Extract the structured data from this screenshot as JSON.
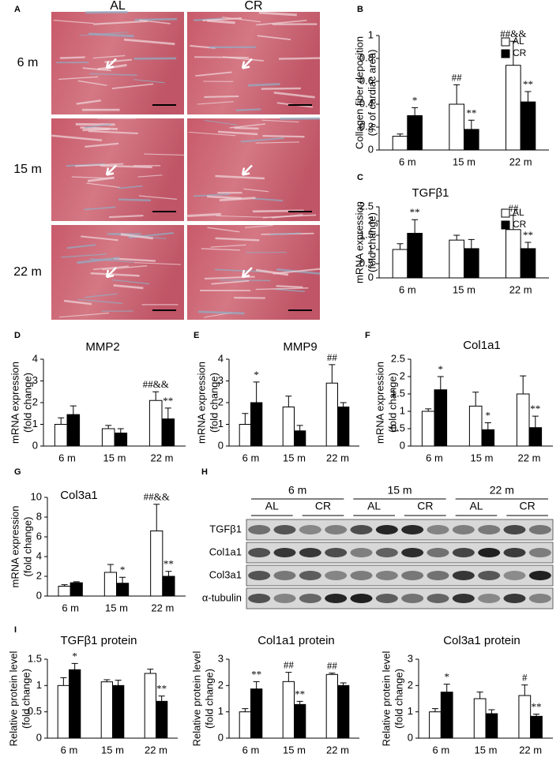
{
  "histology": {
    "panel": "A",
    "columns": [
      "AL",
      "CR"
    ],
    "rows": [
      "6 m",
      "15 m",
      "22 m"
    ]
  },
  "blot": {
    "panel": "H",
    "ages": [
      "6 m",
      "15 m",
      "22 m"
    ],
    "groups": [
      "AL",
      "CR"
    ],
    "proteins": [
      "TGFβ1",
      "Col1a1",
      "Col3a1",
      "α-tubulin"
    ]
  },
  "chart_data": [
    {
      "type": "bar",
      "panel": "B",
      "y_label": [
        "Collagen fiber deposition",
        "(% of cardiac area)"
      ],
      "categories": [
        "6 m",
        "15 m",
        "22 m"
      ],
      "series": [
        {
          "name": "AL",
          "color": "#ffffff",
          "values": [
            0.12,
            0.4,
            0.74
          ],
          "errors": [
            0.02,
            0.17,
            0.21
          ],
          "annotations": [
            null,
            "##",
            "##&&"
          ]
        },
        {
          "name": "CR",
          "color": "#000000",
          "values": [
            0.3,
            0.18,
            0.42
          ],
          "errors": [
            0.07,
            0.08,
            0.09
          ],
          "annotations": [
            "*",
            "**",
            "**"
          ]
        }
      ],
      "ylim": [
        0,
        1
      ],
      "yticks": [
        0,
        0.2,
        0.4,
        0.6,
        0.8,
        1
      ],
      "legend": "upper right"
    },
    {
      "type": "bar",
      "panel": "C",
      "title": "TGFβ1",
      "y_label": [
        "mRNA  expression",
        "(fold change)"
      ],
      "categories": [
        "6 m",
        "15 m",
        "22 m"
      ],
      "series": [
        {
          "name": "AL",
          "color": "#ffffff",
          "values": [
            1.0,
            1.33,
            1.7
          ],
          "errors": [
            0.2,
            0.17,
            0.5
          ],
          "annotations": [
            null,
            null,
            "##"
          ]
        },
        {
          "name": "CR",
          "color": "#000000",
          "values": [
            1.57,
            1.03,
            1.03
          ],
          "errors": [
            0.48,
            0.32,
            0.22
          ],
          "annotations": [
            "**",
            null,
            "**"
          ]
        }
      ],
      "ylim": [
        0,
        2.5
      ],
      "yticks": [
        0,
        0.5,
        1,
        1.5,
        2,
        2.5
      ],
      "legend": "upper right"
    },
    {
      "type": "bar",
      "panel": "D",
      "title": "MMP2",
      "y_label": [
        "mRNA  expression",
        "(fold change)"
      ],
      "categories": [
        "6 m",
        "15 m",
        "22 m"
      ],
      "series": [
        {
          "color": "#ffffff",
          "values": [
            1.0,
            0.8,
            2.1
          ],
          "errors": [
            0.3,
            0.15,
            0.4
          ],
          "annotations": [
            null,
            null,
            "##&&"
          ]
        },
        {
          "color": "#000000",
          "values": [
            1.45,
            0.6,
            1.25
          ],
          "errors": [
            0.4,
            0.2,
            0.5
          ],
          "annotations": [
            null,
            null,
            "**"
          ]
        }
      ],
      "ylim": [
        0,
        4
      ],
      "yticks": [
        0,
        1,
        2,
        3,
        4
      ]
    },
    {
      "type": "bar",
      "panel": "E",
      "title": "MMP9",
      "y_label": [
        "mRNA  expression",
        "(fold change)"
      ],
      "categories": [
        "6 m",
        "15 m",
        "22 m"
      ],
      "series": [
        {
          "color": "#ffffff",
          "values": [
            1.0,
            1.8,
            2.9
          ],
          "errors": [
            0.5,
            0.5,
            0.85
          ],
          "annotations": [
            null,
            null,
            "##"
          ]
        },
        {
          "color": "#000000",
          "values": [
            2.0,
            0.7,
            1.8
          ],
          "errors": [
            0.95,
            0.25,
            0.2
          ],
          "annotations": [
            "*",
            null,
            null
          ]
        }
      ],
      "ylim": [
        0,
        4
      ],
      "yticks": [
        0,
        1,
        2,
        3,
        4
      ]
    },
    {
      "type": "bar",
      "panel": "F",
      "title": "Col1a1",
      "y_label": [
        "mRNA  expression",
        "(fold change)"
      ],
      "categories": [
        "6 m",
        "15 m",
        "22 m"
      ],
      "series": [
        {
          "color": "#ffffff",
          "values": [
            1.0,
            1.15,
            1.5
          ],
          "errors": [
            0.07,
            0.4,
            0.52
          ],
          "annotations": [
            null,
            null,
            null
          ]
        },
        {
          "color": "#000000",
          "values": [
            1.62,
            0.47,
            0.53
          ],
          "errors": [
            0.38,
            0.2,
            0.33
          ],
          "annotations": [
            "*",
            "*",
            "**"
          ]
        }
      ],
      "ylim": [
        0,
        2.5
      ],
      "yticks": [
        0,
        0.5,
        1,
        1.5,
        2,
        2.5
      ]
    },
    {
      "type": "bar",
      "panel": "G",
      "title": "Col3a1",
      "y_label": [
        "mRNA  expression",
        "(fold change)"
      ],
      "categories": [
        "6 m",
        "15 m",
        "22 m"
      ],
      "series": [
        {
          "color": "#ffffff",
          "values": [
            1.0,
            2.4,
            6.6
          ],
          "errors": [
            0.15,
            0.8,
            2.7
          ],
          "annotations": [
            null,
            null,
            "##&&"
          ]
        },
        {
          "color": "#000000",
          "values": [
            1.35,
            1.3,
            2.0
          ],
          "errors": [
            0.1,
            0.6,
            0.5
          ],
          "annotations": [
            null,
            "*",
            "**"
          ]
        }
      ],
      "ylim": [
        0,
        10
      ],
      "yticks": [
        0,
        2,
        4,
        6,
        8,
        10
      ]
    },
    {
      "type": "bar",
      "panel": "I",
      "title": "TGFβ1 protein",
      "y_label": [
        "Relative protein level",
        "(fold change)"
      ],
      "categories": [
        "6 m",
        "15 m",
        "22 m"
      ],
      "series": [
        {
          "color": "#ffffff",
          "values": [
            1.0,
            1.07,
            1.23
          ],
          "errors": [
            0.15,
            0.04,
            0.08
          ],
          "annotations": [
            null,
            null,
            null
          ]
        },
        {
          "color": "#000000",
          "values": [
            1.3,
            1.0,
            0.7
          ],
          "errors": [
            0.12,
            0.1,
            0.1
          ],
          "annotations": [
            "*",
            null,
            "**"
          ]
        }
      ],
      "ylim": [
        0,
        1.5
      ],
      "yticks": [
        0,
        0.5,
        1,
        1.5
      ]
    },
    {
      "type": "bar",
      "title": "Col1a1 protein",
      "y_label": [
        "Relative protein level",
        "(fold change)"
      ],
      "categories": [
        "6 m",
        "15 m",
        "22 m"
      ],
      "series": [
        {
          "color": "#ffffff",
          "values": [
            1.0,
            2.15,
            2.42
          ],
          "errors": [
            0.12,
            0.35,
            0.05
          ],
          "annotations": [
            null,
            "##",
            "##"
          ]
        },
        {
          "color": "#000000",
          "values": [
            1.87,
            1.28,
            2.0
          ],
          "errors": [
            0.28,
            0.12,
            0.1
          ],
          "annotations": [
            "**",
            "**",
            null
          ]
        }
      ],
      "ylim": [
        0,
        3
      ],
      "yticks": [
        0,
        1,
        2,
        3
      ]
    },
    {
      "type": "bar",
      "title": "Col3a1 protein",
      "y_label": [
        "Relative protein level",
        "(fold change)"
      ],
      "categories": [
        "6 m",
        "15 m",
        "22 m"
      ],
      "series": [
        {
          "color": "#ffffff",
          "values": [
            1.0,
            1.5,
            1.62
          ],
          "errors": [
            0.12,
            0.25,
            0.4
          ],
          "annotations": [
            null,
            null,
            "#"
          ]
        },
        {
          "color": "#000000",
          "values": [
            1.75,
            0.93,
            0.83
          ],
          "errors": [
            0.3,
            0.15,
            0.08
          ],
          "annotations": [
            "*",
            null,
            "**"
          ]
        }
      ],
      "ylim": [
        0,
        3
      ],
      "yticks": [
        0,
        1,
        2,
        3
      ]
    }
  ]
}
